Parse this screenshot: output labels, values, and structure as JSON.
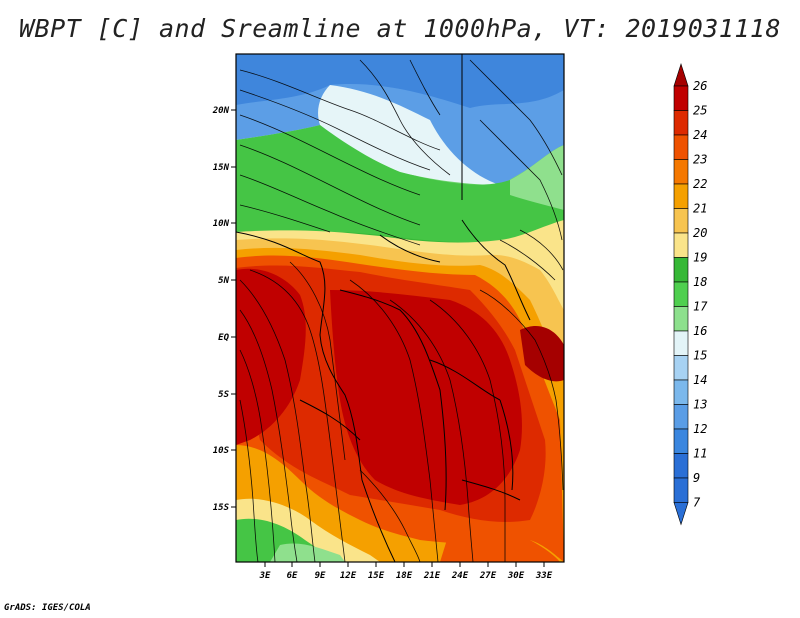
{
  "title": "WBPT [C] and Sreamline at 1000hPa, VT: 2019031118",
  "credit": "GrADS: IGES/COLA",
  "map": {
    "lat_labels": [
      "20N",
      "15N",
      "10N",
      "5N",
      "EQ",
      "5S",
      "10S",
      "15S"
    ],
    "lon_labels": [
      "3E",
      "6E",
      "9E",
      "12E",
      "15E",
      "18E",
      "21E",
      "24E",
      "27E",
      "30E",
      "33E"
    ]
  },
  "colorbar": {
    "labels": [
      "26",
      "25",
      "24",
      "23",
      "22",
      "21",
      "20",
      "19",
      "18",
      "17",
      "16",
      "15",
      "14",
      "13",
      "12",
      "11",
      "9",
      "7"
    ],
    "colors": [
      "#a50000",
      "#c00000",
      "#dd2a00",
      "#ef5200",
      "#f57800",
      "#f5a000",
      "#f7c450",
      "#fae48a",
      "#36b836",
      "#4fcf4f",
      "#8de08d",
      "#e3f4f8",
      "#a7d2f3",
      "#7bb8ec",
      "#5a9de6",
      "#3a86df",
      "#2a6fd6",
      "#2a6fd6"
    ]
  }
}
